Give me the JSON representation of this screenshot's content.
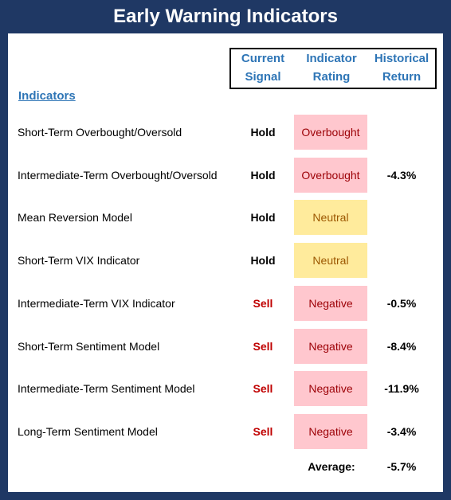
{
  "header": {
    "title": "Early Warning Indicators"
  },
  "table": {
    "columns": [
      [
        "Current",
        "Signal"
      ],
      [
        "Indicator",
        "Rating"
      ],
      [
        "Historical",
        "Return"
      ]
    ],
    "section": "Indicators",
    "rows": [
      {
        "name": "Short-Term Overbought/Oversold",
        "signal": "Hold",
        "signal_color": "#000000",
        "rating": "Overbought",
        "rating_fill": "#ffc7ce",
        "rating_color": "#9c0006",
        "return": null
      },
      {
        "name": "Intermediate-Term Overbought/Oversold",
        "signal": "Hold",
        "signal_color": "#000000",
        "rating": "Overbought",
        "rating_fill": "#ffc7ce",
        "rating_color": "#9c0006",
        "return": "-4.3%"
      },
      {
        "name": "Mean Reversion Model",
        "signal": "Hold",
        "signal_color": "#000000",
        "rating": "Neutral",
        "rating_fill": "#ffeb9c",
        "rating_color": "#9c5700",
        "return": null
      },
      {
        "name": "Short-Term VIX Indicator",
        "signal": "Hold",
        "signal_color": "#000000",
        "rating": "Neutral",
        "rating_fill": "#ffeb9c",
        "rating_color": "#9c5700",
        "return": null
      },
      {
        "name": "Intermediate-Term VIX Indicator",
        "signal": "Sell",
        "signal_color": "#c00000",
        "rating": "Negative",
        "rating_fill": "#ffc7ce",
        "rating_color": "#9c0006",
        "return": "-0.5%"
      },
      {
        "name": "Short-Term Sentiment Model",
        "signal": "Sell",
        "signal_color": "#c00000",
        "rating": "Negative",
        "rating_fill": "#ffc7ce",
        "rating_color": "#9c0006",
        "return": "-8.4%"
      },
      {
        "name": "Intermediate-Term Sentiment Model",
        "signal": "Sell",
        "signal_color": "#c00000",
        "rating": "Negative",
        "rating_fill": "#ffc7ce",
        "rating_color": "#9c0006",
        "return": "-11.9%"
      },
      {
        "name": "Long-Term Sentiment Model",
        "signal": "Sell",
        "signal_color": "#c00000",
        "rating": "Negative",
        "rating_fill": "#ffc7ce",
        "rating_color": "#9c0006",
        "return": "-3.4%"
      }
    ],
    "average": {
      "label": "Average:",
      "value": "-5.7%"
    }
  }
}
